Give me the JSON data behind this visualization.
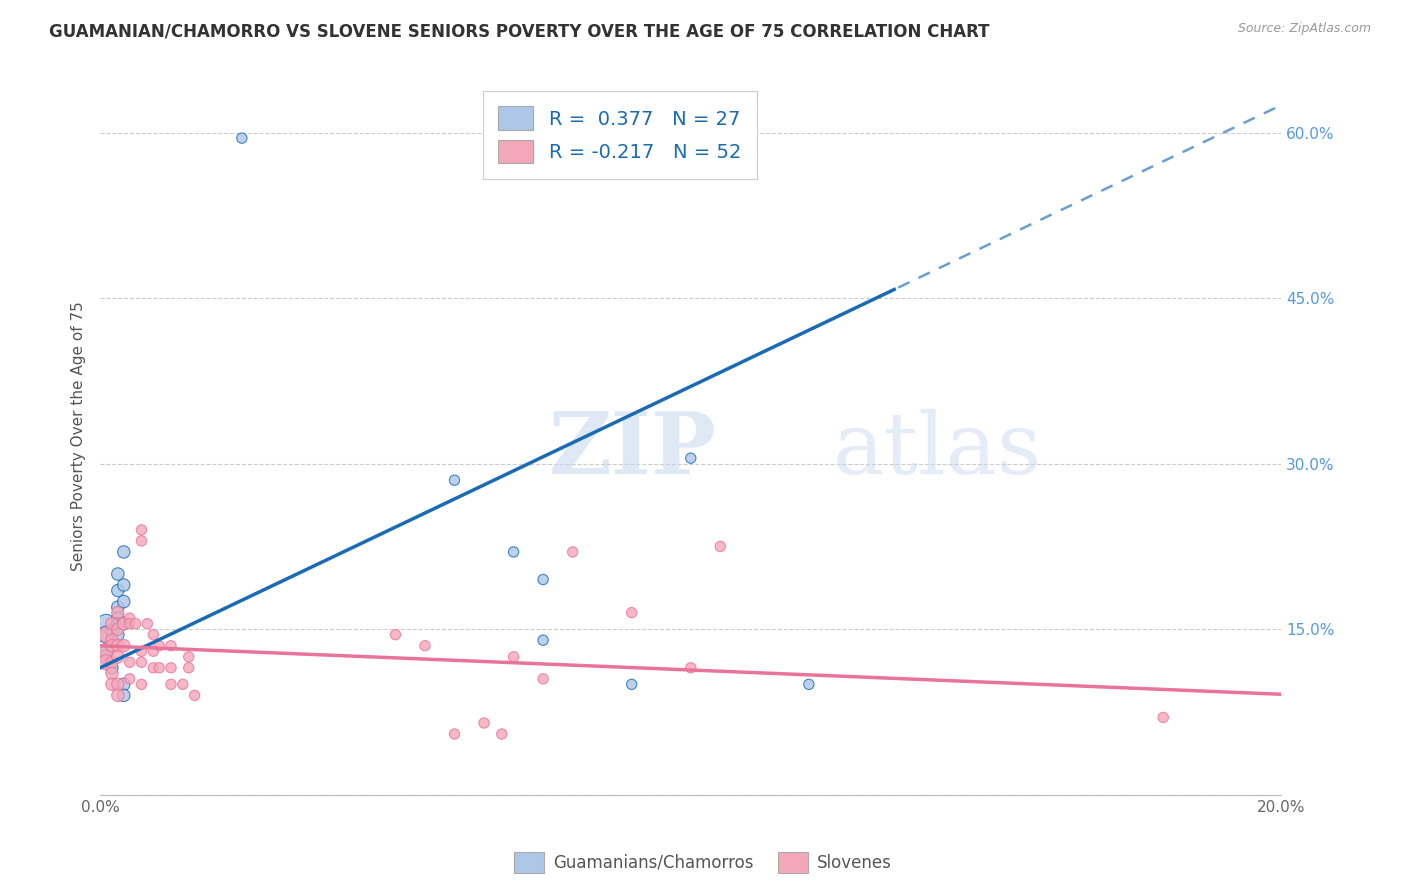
{
  "title": "GUAMANIAN/CHAMORRO VS SLOVENE SENIORS POVERTY OVER THE AGE OF 75 CORRELATION CHART",
  "source": "Source: ZipAtlas.com",
  "ylabel": "Seniors Poverty Over the Age of 75",
  "xlim": [
    0.0,
    0.2
  ],
  "ylim": [
    0.0,
    0.65
  ],
  "yticks": [
    0.0,
    0.15,
    0.3,
    0.45,
    0.6
  ],
  "ytick_labels": [
    "",
    "15.0%",
    "30.0%",
    "45.0%",
    "60.0%"
  ],
  "xticks": [
    0.0,
    0.04,
    0.08,
    0.12,
    0.16,
    0.2
  ],
  "xtick_labels": [
    "0.0%",
    "",
    "",
    "",
    "",
    "20.0%"
  ],
  "r_guam": 0.377,
  "n_guam": 27,
  "r_slovene": -0.217,
  "n_slovene": 52,
  "guam_color": "#aec6e8",
  "slovene_color": "#f4a7b9",
  "line_guam_color": "#1a6bb5",
  "line_slovene_color": "#e8749a",
  "watermark": "ZIPatlas",
  "background_color": "#ffffff",
  "line_guam_slope": 2.55,
  "line_guam_intercept": 0.115,
  "line_guam_solid_end": 0.135,
  "line_slovene_slope": -0.22,
  "line_slovene_intercept": 0.135,
  "guam_scatter": [
    [
      0.024,
      0.595
    ],
    [
      0.001,
      0.155
    ],
    [
      0.001,
      0.145
    ],
    [
      0.001,
      0.13
    ],
    [
      0.001,
      0.125
    ],
    [
      0.002,
      0.148
    ],
    [
      0.002,
      0.135
    ],
    [
      0.002,
      0.115
    ],
    [
      0.003,
      0.2
    ],
    [
      0.003,
      0.185
    ],
    [
      0.003,
      0.17
    ],
    [
      0.003,
      0.16
    ],
    [
      0.003,
      0.155
    ],
    [
      0.003,
      0.145
    ],
    [
      0.004,
      0.22
    ],
    [
      0.004,
      0.19
    ],
    [
      0.004,
      0.175
    ],
    [
      0.004,
      0.155
    ],
    [
      0.004,
      0.1
    ],
    [
      0.004,
      0.09
    ],
    [
      0.06,
      0.285
    ],
    [
      0.07,
      0.22
    ],
    [
      0.075,
      0.195
    ],
    [
      0.075,
      0.14
    ],
    [
      0.09,
      0.1
    ],
    [
      0.1,
      0.305
    ],
    [
      0.12,
      0.1
    ]
  ],
  "slovene_scatter": [
    [
      0.001,
      0.145
    ],
    [
      0.001,
      0.13
    ],
    [
      0.001,
      0.12
    ],
    [
      0.002,
      0.155
    ],
    [
      0.002,
      0.14
    ],
    [
      0.002,
      0.135
    ],
    [
      0.002,
      0.12
    ],
    [
      0.002,
      0.11
    ],
    [
      0.002,
      0.1
    ],
    [
      0.003,
      0.165
    ],
    [
      0.003,
      0.15
    ],
    [
      0.003,
      0.135
    ],
    [
      0.003,
      0.125
    ],
    [
      0.003,
      0.1
    ],
    [
      0.003,
      0.09
    ],
    [
      0.004,
      0.155
    ],
    [
      0.004,
      0.135
    ],
    [
      0.005,
      0.16
    ],
    [
      0.005,
      0.155
    ],
    [
      0.005,
      0.12
    ],
    [
      0.005,
      0.105
    ],
    [
      0.006,
      0.155
    ],
    [
      0.007,
      0.24
    ],
    [
      0.007,
      0.23
    ],
    [
      0.007,
      0.13
    ],
    [
      0.007,
      0.12
    ],
    [
      0.007,
      0.1
    ],
    [
      0.008,
      0.155
    ],
    [
      0.009,
      0.145
    ],
    [
      0.009,
      0.13
    ],
    [
      0.009,
      0.115
    ],
    [
      0.01,
      0.135
    ],
    [
      0.01,
      0.115
    ],
    [
      0.012,
      0.135
    ],
    [
      0.012,
      0.115
    ],
    [
      0.012,
      0.1
    ],
    [
      0.014,
      0.1
    ],
    [
      0.015,
      0.125
    ],
    [
      0.015,
      0.115
    ],
    [
      0.016,
      0.09
    ],
    [
      0.05,
      0.145
    ],
    [
      0.055,
      0.135
    ],
    [
      0.06,
      0.055
    ],
    [
      0.065,
      0.065
    ],
    [
      0.068,
      0.055
    ],
    [
      0.07,
      0.125
    ],
    [
      0.075,
      0.105
    ],
    [
      0.08,
      0.22
    ],
    [
      0.09,
      0.165
    ],
    [
      0.1,
      0.115
    ],
    [
      0.105,
      0.225
    ],
    [
      0.18,
      0.07
    ]
  ]
}
